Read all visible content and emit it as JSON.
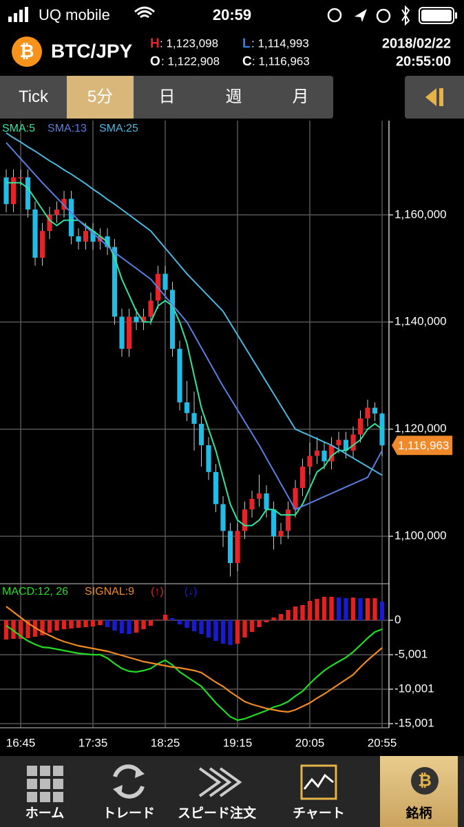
{
  "status_bar": {
    "carrier": "UQ mobile",
    "time": "20:59"
  },
  "header": {
    "pair": "BTC/JPY",
    "high_label": "H",
    "high": ": 1,123,098",
    "low_label": "L",
    "low": ": 1,114,993",
    "open_label": "O",
    "open": ": 1,122,908",
    "close_label": "C",
    "close": ": 1,116,963",
    "date": "2018/02/22",
    "time": "20:55:00",
    "last_price": "1,116,963"
  },
  "tabs": [
    "Tick",
    "5分",
    "日",
    "週",
    "月"
  ],
  "active_tab": 1,
  "nav": [
    "ホーム",
    "トレード",
    "スピード注文",
    "チャート",
    "銘柄"
  ],
  "active_nav": 4,
  "chart_data": [
    {
      "type": "candlestick",
      "up_color": "#e5242a",
      "down_color": "#22bde6",
      "xlim": [
        -0.86,
        52.95
      ],
      "xticks": [
        {
          "value": 2,
          "label": "16:45"
        },
        {
          "value": 12,
          "label": "17:35"
        },
        {
          "value": 22,
          "label": "18:25"
        },
        {
          "value": 32,
          "label": "19:15"
        },
        {
          "value": 42,
          "label": "20:05"
        },
        {
          "value": 52,
          "label": "20:55"
        }
      ],
      "ylim": [
        1091400,
        1177600
      ],
      "yticks": [
        {
          "value": 1100000,
          "label": "1,100,000"
        },
        {
          "value": 1120000,
          "label": "1,120,000"
        },
        {
          "value": 1140000,
          "label": "1,140,000"
        },
        {
          "value": 1160000,
          "label": "1,160,000"
        }
      ],
      "grid": true,
      "open": [
        1167000,
        1162000,
        1167000,
        1167000,
        1161000,
        1152000,
        1157000,
        1160000,
        1161000,
        1163000,
        1156000,
        1155000,
        1157000,
        1155000,
        1156000,
        1154000,
        1141000,
        1135000,
        1141000,
        1140000,
        1141000,
        1144000,
        1149000,
        1146000,
        1135000,
        1125000,
        1123000,
        1121000,
        1117000,
        1112000,
        1106000,
        1101000,
        1095000,
        1101000,
        1105000,
        1107000,
        1108000,
        1105000,
        1100000,
        1101000,
        1105000,
        1109000,
        1113000,
        1115000,
        1116000,
        1114000,
        1117000,
        1118000,
        1116000,
        1119000,
        1122000,
        1124000,
        1122908
      ],
      "high": [
        1168500,
        1168500,
        1168500,
        1168500,
        1162500,
        1158500,
        1161500,
        1162500,
        1164500,
        1164500,
        1157500,
        1158500,
        1158500,
        1157500,
        1157500,
        1155500,
        1142500,
        1142500,
        1142500,
        1142500,
        1145500,
        1150500,
        1150500,
        1147500,
        1136500,
        1129000,
        1127000,
        1122500,
        1118500,
        1113500,
        1107500,
        1102500,
        1102500,
        1106500,
        1108500,
        1111500,
        1109500,
        1106500,
        1102500,
        1106500,
        1110500,
        1114500,
        1117500,
        1118500,
        1117500,
        1118500,
        1119500,
        1119500,
        1120500,
        1123500,
        1125500,
        1125000,
        1123098
      ],
      "low": [
        1160500,
        1160500,
        1165500,
        1159500,
        1150500,
        1150500,
        1155500,
        1158500,
        1159500,
        1154500,
        1153500,
        1153500,
        1153500,
        1153500,
        1152500,
        1139500,
        1133500,
        1133500,
        1138500,
        1138500,
        1139500,
        1142500,
        1144500,
        1133500,
        1123500,
        1121500,
        1116000,
        1113000,
        1110500,
        1104500,
        1098000,
        1092500,
        1093500,
        1099500,
        1103500,
        1105500,
        1103500,
        1097500,
        1098500,
        1099500,
        1103500,
        1107500,
        1111500,
        1113500,
        1112500,
        1112500,
        1115500,
        1114500,
        1114500,
        1117500,
        1120500,
        1121500,
        1114993
      ],
      "close": [
        1162000,
        1167000,
        1167000,
        1161000,
        1152000,
        1157000,
        1160000,
        1161000,
        1163000,
        1156000,
        1155000,
        1157000,
        1155000,
        1156000,
        1154000,
        1141000,
        1135000,
        1141000,
        1140000,
        1141000,
        1144000,
        1149000,
        1146000,
        1135000,
        1125000,
        1123000,
        1121000,
        1117000,
        1112000,
        1106000,
        1101000,
        1095000,
        1101000,
        1105000,
        1107000,
        1108000,
        1105000,
        1100000,
        1101000,
        1105000,
        1109000,
        1113000,
        1115000,
        1116000,
        1114000,
        1117000,
        1118000,
        1116000,
        1119000,
        1122000,
        1124000,
        1122908,
        1116963
      ],
      "series": [
        {
          "name": "SMA:5",
          "color": "#2ee6a0",
          "values": [
            1166000,
            1166000,
            1166000,
            1165000,
            1163000,
            1161000,
            1159000,
            1158000,
            1159000,
            1159000,
            1159000,
            1158000,
            1157000,
            1156000,
            1155000,
            1152000,
            1148000,
            1145000,
            1142000,
            1140000,
            1140000,
            1143000,
            1144000,
            1143000,
            1140000,
            1136000,
            1130000,
            1124000,
            1120000,
            1116000,
            1111000,
            1106000,
            1103000,
            1102000,
            1102000,
            1103000,
            1105000,
            1105000,
            1104000,
            1104000,
            1104000,
            1106000,
            1109000,
            1112000,
            1113000,
            1115000,
            1116000,
            1116000,
            1117000,
            1118000,
            1120000,
            1121000,
            1120000
          ]
        },
        {
          "name": "SMA:13",
          "color": "#5b7fe0",
          "values": [
            1173500,
            1172000,
            1170500,
            1169000,
            1167500,
            1166000,
            1164600,
            1163200,
            1161800,
            1160400,
            1159000,
            1157800,
            1156600,
            1155400,
            1154200,
            1153000,
            1152000,
            1151000,
            1150000,
            1149000,
            1148000,
            1146400,
            1144800,
            1143200,
            1141600,
            1140000,
            1137600,
            1135200,
            1132800,
            1130400,
            1128000,
            1125800,
            1123600,
            1121400,
            1119200,
            1117000,
            1114600,
            1112200,
            1109800,
            1107400,
            1105000,
            1105600,
            1106200,
            1106800,
            1107400,
            1108000,
            1108600,
            1109200,
            1109800,
            1110400,
            1111000,
            1113500,
            1116000
          ]
        },
        {
          "name": "SMA:25",
          "color": "#4ab8e0",
          "values": [
            1175300,
            1174400,
            1173600,
            1172700,
            1171900,
            1171000,
            1170100,
            1169300,
            1168400,
            1167600,
            1166700,
            1165800,
            1164800,
            1163900,
            1162900,
            1162000,
            1161000,
            1160000,
            1159000,
            1158000,
            1157000,
            1155400,
            1153800,
            1152200,
            1150600,
            1149000,
            1147600,
            1146200,
            1144800,
            1143400,
            1142000,
            1139800,
            1137600,
            1135400,
            1133200,
            1131000,
            1128800,
            1126600,
            1124400,
            1122200,
            1120000,
            1119400,
            1118800,
            1118200,
            1117600,
            1117000,
            1116200,
            1115400,
            1114600,
            1113800,
            1113000,
            1112200,
            1111400
          ]
        }
      ]
    },
    {
      "type": "macd",
      "xlim": [
        -0.86,
        52.95
      ],
      "ylim": [
        -15600,
        5200
      ],
      "yticks": [
        {
          "value": -15001,
          "label": "-15,001"
        },
        {
          "value": -10001,
          "label": "-10,001"
        },
        {
          "value": -5001,
          "label": "-5,001"
        },
        0
      ],
      "series": [
        {
          "name": "MACD:12, 26",
          "color": "#22dd22",
          "values": [
            -800,
            -1500,
            -2300,
            -3000,
            -3500,
            -3900,
            -4000,
            -4200,
            -4400,
            -4600,
            -4800,
            -4900,
            -5000,
            -5000,
            -5500,
            -6300,
            -7000,
            -7400,
            -7500,
            -7300,
            -7000,
            -6300,
            -5800,
            -6500,
            -7500,
            -8200,
            -8900,
            -9600,
            -10800,
            -12000,
            -13000,
            -14000,
            -14500,
            -14300,
            -13900,
            -13500,
            -13100,
            -12600,
            -12300,
            -11800,
            -11000,
            -10300,
            -9200,
            -8200,
            -7300,
            -6600,
            -6000,
            -5400,
            -4600,
            -3600,
            -2600,
            -1700,
            -1300
          ]
        },
        {
          "name": "SIGNAL:9",
          "color": "#f08a24",
          "values": [
            2000,
            1200,
            400,
            -400,
            -1100,
            -1700,
            -2200,
            -2700,
            -3100,
            -3400,
            -3700,
            -3900,
            -4100,
            -4300,
            -4500,
            -4800,
            -5100,
            -5400,
            -5700,
            -6000,
            -6200,
            -6400,
            -6600,
            -6800,
            -6900,
            -7100,
            -7300,
            -7600,
            -8300,
            -9000,
            -9600,
            -10400,
            -11100,
            -11800,
            -12200,
            -12500,
            -12800,
            -13000,
            -13200,
            -13300,
            -13000,
            -12500,
            -12000,
            -11300,
            -10700,
            -10000,
            -9300,
            -8600,
            -7900,
            -6800,
            -5800,
            -4900,
            -4000
          ]
        }
      ],
      "histogram": {
        "up": {
          "name": "(↑)",
          "color": "#e52020"
        },
        "down": {
          "name": "(↓)",
          "color": "#1a1ad0"
        },
        "values": [
          -2800,
          -2700,
          -2700,
          -2600,
          -2400,
          -2200,
          -1800,
          -1500,
          -1300,
          -1200,
          -1100,
          -1000,
          -900,
          -700,
          -1000,
          -1500,
          -1900,
          -2000,
          -1800,
          -1300,
          -800,
          100,
          800,
          300,
          -600,
          -1100,
          -1600,
          -2000,
          -2500,
          -3000,
          -3400,
          -3600,
          -3400,
          -2500,
          -1700,
          -1000,
          -300,
          400,
          900,
          1500,
          2000,
          2200,
          2800,
          3100,
          3400,
          3400,
          3300,
          3200,
          3300,
          3200,
          3200,
          3200,
          2700
        ]
      }
    }
  ]
}
